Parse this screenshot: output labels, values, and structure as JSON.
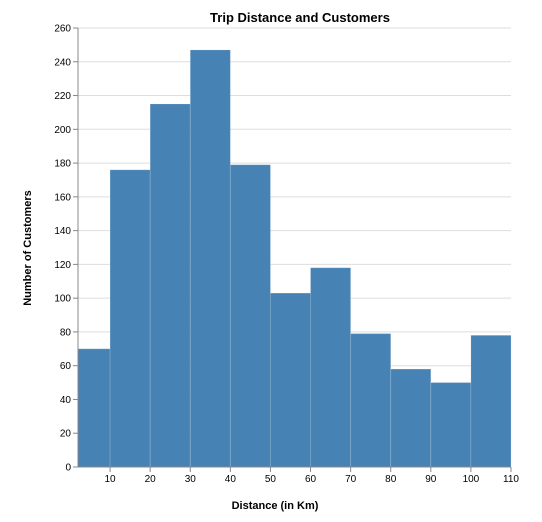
{
  "chart_data": {
    "type": "bar",
    "title": "Trip Distance and Customers",
    "xlabel": "Distance (in Km)",
    "ylabel": "Number of Customers",
    "bins": [
      {
        "x0": 2,
        "x1": 10,
        "count": 70
      },
      {
        "x0": 10,
        "x1": 20,
        "count": 176
      },
      {
        "x0": 20,
        "x1": 30,
        "count": 215
      },
      {
        "x0": 30,
        "x1": 40,
        "count": 247
      },
      {
        "x0": 40,
        "x1": 50,
        "count": 179
      },
      {
        "x0": 50,
        "x1": 60,
        "count": 103
      },
      {
        "x0": 60,
        "x1": 70,
        "count": 118
      },
      {
        "x0": 70,
        "x1": 80,
        "count": 79
      },
      {
        "x0": 80,
        "x1": 90,
        "count": 58
      },
      {
        "x0": 90,
        "x1": 100,
        "count": 50
      },
      {
        "x0": 100,
        "x1": 110,
        "count": 78
      }
    ],
    "xlim": [
      2,
      110
    ],
    "ylim": [
      0,
      260
    ],
    "x_ticks": [
      10,
      20,
      30,
      40,
      50,
      60,
      70,
      80,
      90,
      100,
      110
    ],
    "y_ticks": [
      0,
      20,
      40,
      60,
      80,
      100,
      120,
      140,
      160,
      180,
      200,
      220,
      240,
      260
    ],
    "grid": "horizontal",
    "bar_color": "#4682b4",
    "legend": "none"
  }
}
